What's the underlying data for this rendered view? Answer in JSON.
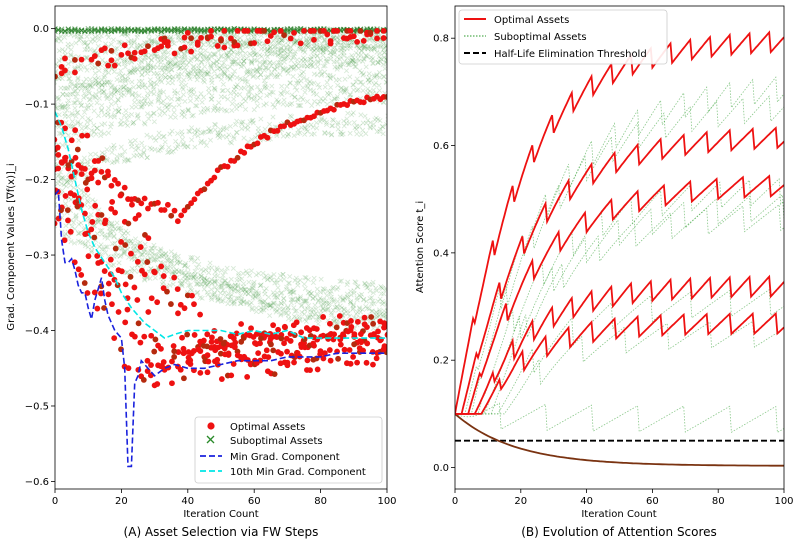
{
  "chart_data": [
    {
      "type": "scatter",
      "title": "",
      "caption": "(A) Asset Selection via FW Steps",
      "xlabel": "Iteration Count",
      "ylabel": "Grad. Component Values [∇f(x)]_i",
      "xlim": [
        0,
        100
      ],
      "ylim": [
        -0.61,
        0.03
      ],
      "xticks": [
        "0",
        "20",
        "40",
        "60",
        "80",
        "100"
      ],
      "yticks": [
        "0.0",
        "−0.1",
        "−0.2",
        "−0.3",
        "−0.4",
        "−0.5",
        "−0.6"
      ],
      "ytick_values": [
        0.0,
        -0.1,
        -0.2,
        -0.3,
        -0.4,
        -0.5,
        -0.6
      ],
      "legend_position": "lower-right",
      "legend": [
        "Optimal Assets",
        "Suboptimal Assets",
        "Min Grad. Component",
        "10th Min Grad. Component"
      ],
      "colors": {
        "optimal": "#ee1111",
        "suboptimal": "#2a8a2a",
        "min": "#1a22dd",
        "tenth_min": "#00e6e6"
      },
      "series": [
        {
          "name": "Optimal Assets",
          "marker": "circle",
          "color": "#ee1111",
          "groups": [
            {
              "start": -0.17,
              "end": -0.07,
              "dip_x": 38,
              "dip_y": -0.25
            },
            {
              "start": -0.23,
              "end": -0.43,
              "dip_x": 25,
              "dip_y": -0.46
            },
            {
              "start": -0.2,
              "end": -0.42,
              "dip_x": 30,
              "dip_y": -0.44
            },
            {
              "start": -0.18,
              "end": -0.41,
              "dip_x": 35,
              "dip_y": -0.43
            },
            {
              "start": -0.15,
              "end": -0.4,
              "dip_x": 40,
              "dip_y": -0.42
            },
            {
              "start": -0.1,
              "end": -0.39,
              "dip_x": 45,
              "dip_y": -0.41
            }
          ],
          "top_cluster": {
            "start": -0.05,
            "end": -0.005
          }
        },
        {
          "name": "Suboptimal Assets",
          "marker": "x",
          "color": "#2a8a2a",
          "groups": [
            {
              "start": -0.02,
              "end": -0.002
            },
            {
              "start": -0.05,
              "end": -0.01
            },
            {
              "start": -0.08,
              "end": -0.02
            },
            {
              "start": -0.1,
              "end": -0.03
            },
            {
              "start": -0.12,
              "end": -0.05
            },
            {
              "start": -0.15,
              "end": -0.08
            },
            {
              "start": -0.2,
              "end": -0.12
            },
            {
              "start": -0.22,
              "end": -0.36
            },
            {
              "start": -0.25,
              "end": -0.38
            },
            {
              "start": -0.18,
              "end": -0.4
            }
          ]
        },
        {
          "name": "Min Grad. Component",
          "style": "dashed",
          "color": "#1a22dd",
          "x": [
            0,
            1,
            2,
            3,
            4,
            5,
            6,
            7,
            8,
            9,
            10,
            11,
            12,
            13,
            14,
            15,
            16,
            18,
            20,
            21,
            22,
            23,
            24,
            25,
            26,
            28,
            30,
            33,
            36,
            40,
            45,
            50,
            55,
            60,
            65,
            70,
            75,
            80,
            85,
            90,
            95,
            100
          ],
          "y": [
            -0.22,
            -0.215,
            -0.28,
            -0.31,
            -0.31,
            -0.305,
            -0.32,
            -0.34,
            -0.35,
            -0.35,
            -0.37,
            -0.385,
            -0.36,
            -0.345,
            -0.33,
            -0.36,
            -0.38,
            -0.4,
            -0.41,
            -0.45,
            -0.58,
            -0.58,
            -0.47,
            -0.46,
            -0.44,
            -0.45,
            -0.46,
            -0.45,
            -0.445,
            -0.45,
            -0.45,
            -0.445,
            -0.44,
            -0.44,
            -0.44,
            -0.435,
            -0.435,
            -0.435,
            -0.43,
            -0.43,
            -0.43,
            -0.43
          ]
        },
        {
          "name": "10th Min Grad. Component",
          "style": "dashed",
          "color": "#00e6e6",
          "x": [
            0,
            2,
            4,
            6,
            8,
            10,
            12,
            15,
            18,
            20,
            23,
            25,
            27,
            30,
            33,
            36,
            40,
            45,
            50,
            55,
            60,
            65,
            70,
            75,
            80,
            85,
            90,
            95,
            100
          ],
          "y": [
            -0.11,
            -0.13,
            -0.16,
            -0.2,
            -0.24,
            -0.27,
            -0.29,
            -0.31,
            -0.33,
            -0.35,
            -0.37,
            -0.38,
            -0.39,
            -0.4,
            -0.41,
            -0.405,
            -0.4,
            -0.4,
            -0.4,
            -0.405,
            -0.4,
            -0.405,
            -0.4,
            -0.41,
            -0.41,
            -0.41,
            -0.41,
            -0.41,
            -0.41
          ]
        }
      ]
    },
    {
      "type": "line",
      "title": "",
      "caption": "(B) Evolution of Attention Scores",
      "xlabel": "Iteration Count",
      "ylabel": "Attention Score t_i",
      "xlim": [
        0,
        100
      ],
      "ylim": [
        -0.04,
        0.86
      ],
      "xticks": [
        "0",
        "20",
        "40",
        "60",
        "80",
        "100"
      ],
      "yticks": [
        "0.0",
        "0.2",
        "0.4",
        "0.6",
        "0.8"
      ],
      "ytick_values": [
        0.0,
        0.2,
        0.4,
        0.6,
        0.8
      ],
      "legend_position": "top-left",
      "legend": [
        "Optimal Assets",
        "Suboptimal Assets",
        "Half-Life Elimination Threshold"
      ],
      "colors": {
        "optimal": "#ee1111",
        "suboptimal": "#2a9a2a",
        "threshold": "#000000"
      },
      "threshold": 0.05,
      "series": [
        {
          "name": "Optimal Assets",
          "color": "#ee1111",
          "curves": [
            {
              "start": 0.1,
              "asymptote": 0.8,
              "rate": 0.05,
              "delay": 0
            },
            {
              "start": 0.1,
              "asymptote": 0.62,
              "rate": 0.05,
              "delay": 2
            },
            {
              "start": 0.1,
              "asymptote": 0.53,
              "rate": 0.05,
              "delay": 4
            },
            {
              "start": 0.1,
              "asymptote": 0.34,
              "rate": 0.06,
              "delay": 6
            },
            {
              "start": 0.1,
              "asymptote": 0.27,
              "rate": 0.07,
              "delay": 8
            }
          ]
        },
        {
          "name": "Suboptimal Assets",
          "color": "#2a9a2a",
          "curves": [
            {
              "start": 0.1,
              "asymptote": 0.72,
              "rate": 0.04,
              "delay": 3
            },
            {
              "start": 0.1,
              "asymptote": 0.68,
              "rate": 0.045,
              "delay": 5
            },
            {
              "start": 0.1,
              "asymptote": 0.52,
              "rate": 0.05,
              "delay": 7
            },
            {
              "start": 0.1,
              "asymptote": 0.49,
              "rate": 0.05,
              "delay": 9
            },
            {
              "start": 0.1,
              "asymptote": 0.47,
              "rate": 0.055,
              "delay": 11
            },
            {
              "start": 0.1,
              "asymptote": 0.31,
              "rate": 0.06,
              "delay": 13
            },
            {
              "start": 0.1,
              "asymptote": 0.25,
              "rate": 0.07,
              "delay": 15
            },
            {
              "start": 0.1,
              "asymptote": 0.09,
              "rate": 0.03,
              "delay": 0
            }
          ]
        },
        {
          "name": "decaying assets",
          "color": "#7a3311",
          "curves": [
            {
              "start": 0.1,
              "end": 0.003,
              "rate": 0.055
            }
          ]
        }
      ]
    }
  ]
}
